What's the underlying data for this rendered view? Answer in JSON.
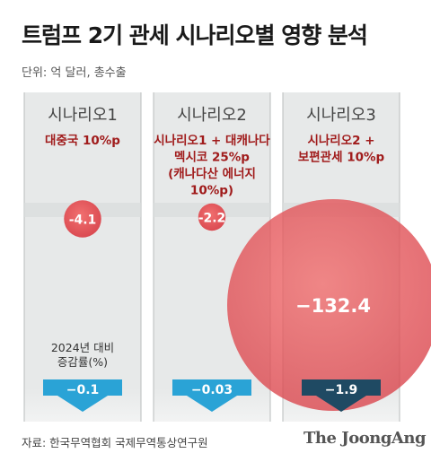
{
  "title": "트럼프 2기 관세 시나리오별 영향 분석",
  "unit_label": "단위: 억 달러, 총수출",
  "source": "자료: 한국무역협회 국제무역통상연구원",
  "brand": "The JoongAng",
  "colors": {
    "panel": "#e7e9e9",
    "panel_border": "#b9bcbc",
    "scenario_text": "#a01b1b",
    "circle": "#f05c5c",
    "arrow_light": "#2aa3d6",
    "arrow_dark": "#1f4a63"
  },
  "chart_data": {
    "type": "bubble",
    "categories": [
      "시나리오1",
      "시나리오2",
      "시나리오3"
    ],
    "descriptions": [
      [
        "대중국 10%p"
      ],
      [
        "시나리오1 + 대캐나다",
        "멕시코 25%p",
        "(캐나다산 에너지",
        "10%p)"
      ],
      [
        "시나리오2 +",
        "보편관세 10%p"
      ]
    ],
    "series": [
      {
        "values": [
          -4.1,
          -2.2,
          -132.4
        ],
        "labels": [
          "-4.1",
          "-2.2",
          "−132.4"
        ]
      },
      {
        "values": [
          -0.1,
          -0.03,
          -1.9
        ],
        "labels": [
          "−0.1",
          "−0.03",
          "−1.9"
        ]
      }
    ],
    "annotation": [
      "2024년 대비",
      "증감률(%)"
    ]
  }
}
